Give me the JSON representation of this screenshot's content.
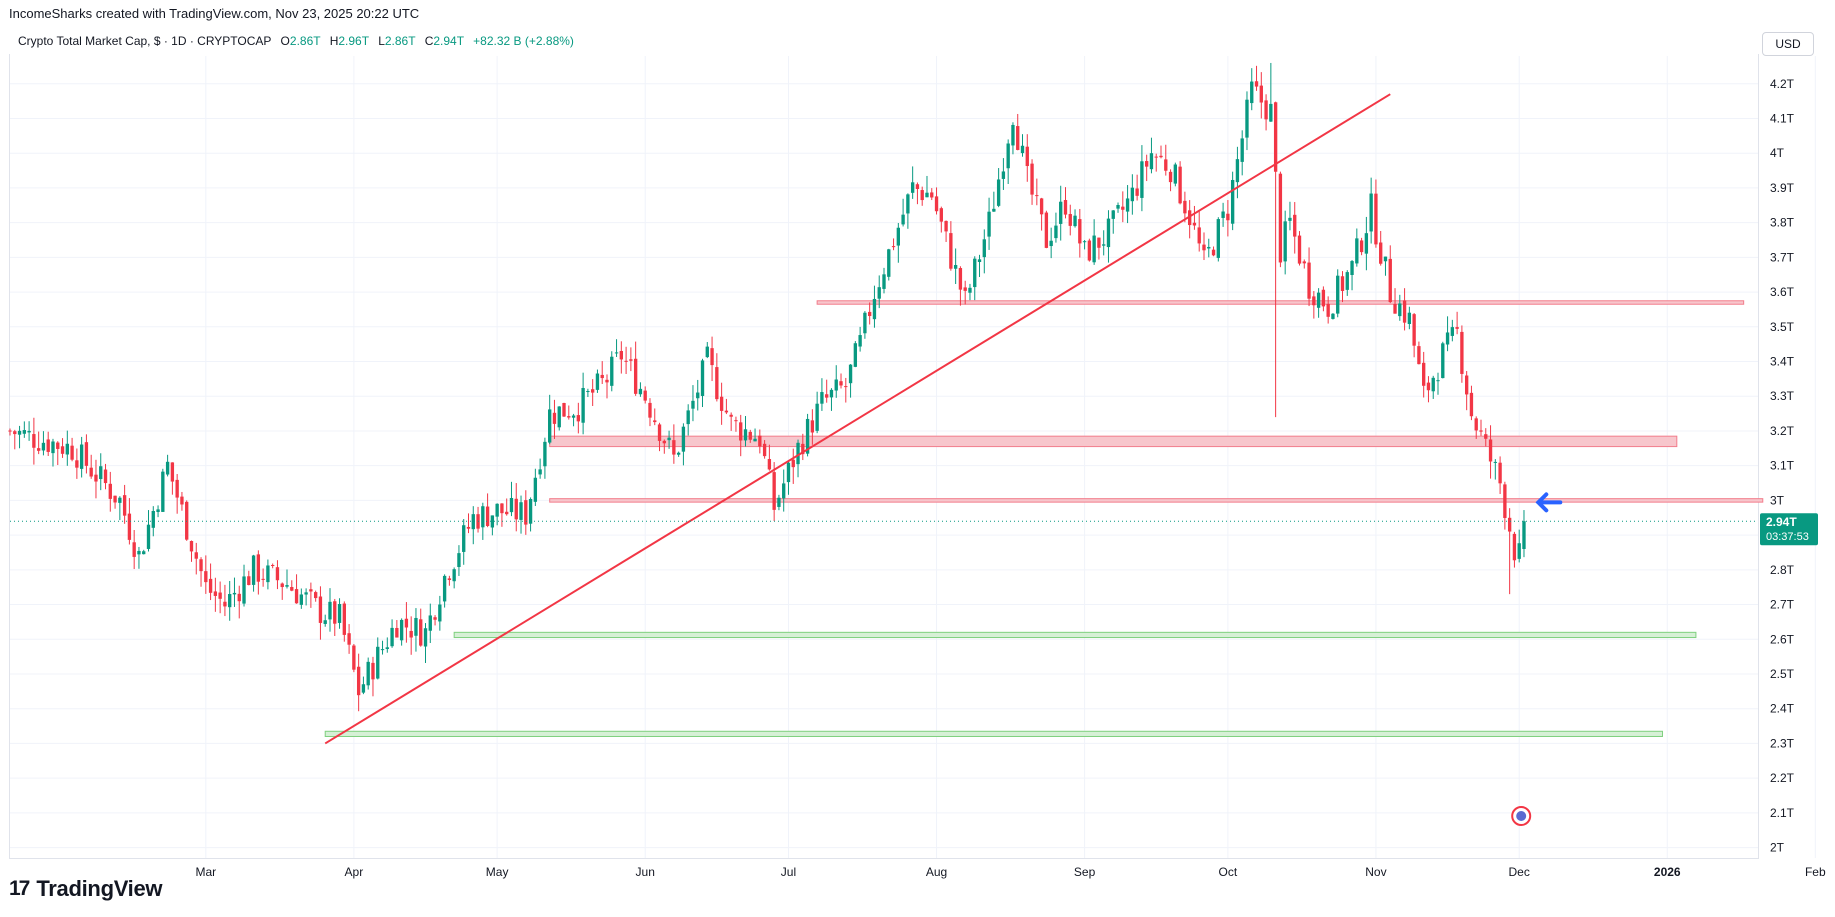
{
  "header": {
    "credit": "IncomeSharks created with TradingView.com, Nov 23, 2025 20:22 UTC",
    "symbol": "Crypto Total Market Cap, $ · 1D · CRYPTOCAP",
    "open_label": "O",
    "open": "2.86T",
    "high_label": "H",
    "high": "2.96T",
    "low_label": "L",
    "low": "2.86T",
    "close_label": "C",
    "close": "2.94T",
    "change": "+82.32 B (+2.88%)",
    "currency": "USD"
  },
  "brand": {
    "logo": "17",
    "name": "TradingView"
  },
  "price_tag": {
    "value": "2.94T",
    "countdown": "03:37:53"
  },
  "colors": {
    "up": "#089981",
    "down": "#f23645",
    "trendline": "#f23645",
    "resistance_fill": "#f7c6cc",
    "resistance_stroke": "#f27d8c",
    "support_fill": "#d6f0d6",
    "support_stroke": "#7fd07f",
    "arrow": "#2962ff",
    "grid": "#f0f3fa"
  },
  "chart_data": {
    "type": "candlestick",
    "title": "Crypto Total Market Cap, $ · 1D · CRYPTOCAP",
    "yaxis_unit": "T",
    "ylim": [
      1.97,
      4.28
    ],
    "y_ticks": [
      "2T",
      "2.1T",
      "2.2T",
      "2.3T",
      "2.4T",
      "2.5T",
      "2.6T",
      "2.7T",
      "2.8T",
      "2.9T",
      "3T",
      "3.1T",
      "3.2T",
      "3.3T",
      "3.4T",
      "3.5T",
      "3.6T",
      "3.7T",
      "3.8T",
      "3.9T",
      "4T",
      "4.1T",
      "4.2T"
    ],
    "y_tick_values": [
      2.0,
      2.1,
      2.2,
      2.3,
      2.4,
      2.5,
      2.6,
      2.7,
      2.8,
      2.9,
      3.0,
      3.1,
      3.2,
      3.3,
      3.4,
      3.5,
      3.6,
      3.7,
      3.8,
      3.9,
      4.0,
      4.1,
      4.2
    ],
    "x_range_days": [
      -13,
      353
    ],
    "x_ticks": [
      {
        "label": "Mar",
        "day": 28
      },
      {
        "label": "Apr",
        "day": 59
      },
      {
        "label": "May",
        "day": 89
      },
      {
        "label": "Jun",
        "day": 120
      },
      {
        "label": "Jul",
        "day": 150
      },
      {
        "label": "Aug",
        "day": 181
      },
      {
        "label": "Sep",
        "day": 212
      },
      {
        "label": "Oct",
        "day": 242
      },
      {
        "label": "Nov",
        "day": 273
      },
      {
        "label": "Dec",
        "day": 303
      },
      {
        "label": "2026",
        "day": 334,
        "bold": true
      },
      {
        "label": "Feb",
        "day": 365
      }
    ],
    "last_close": 2.94,
    "key_points": [
      {
        "day": -13,
        "close": 3.2
      },
      {
        "day": 0,
        "close": 3.15
      },
      {
        "day": 10,
        "close": 3.0
      },
      {
        "day": 14,
        "close": 2.84
      },
      {
        "day": 20,
        "close": 3.1
      },
      {
        "day": 28,
        "close": 2.75
      },
      {
        "day": 32,
        "close": 2.7
      },
      {
        "day": 38,
        "close": 2.8
      },
      {
        "day": 45,
        "close": 2.76
      },
      {
        "day": 52,
        "close": 2.68
      },
      {
        "day": 56,
        "close": 2.66
      },
      {
        "day": 60,
        "close": 2.45
      },
      {
        "day": 64,
        "close": 2.55
      },
      {
        "day": 68,
        "close": 2.65
      },
      {
        "day": 74,
        "close": 2.62
      },
      {
        "day": 78,
        "close": 2.78
      },
      {
        "day": 84,
        "close": 2.95
      },
      {
        "day": 89,
        "close": 2.97
      },
      {
        "day": 95,
        "close": 2.96
      },
      {
        "day": 100,
        "close": 3.25
      },
      {
        "day": 106,
        "close": 3.27
      },
      {
        "day": 112,
        "close": 3.35
      },
      {
        "day": 115,
        "close": 3.42
      },
      {
        "day": 120,
        "close": 3.3
      },
      {
        "day": 126,
        "close": 3.12
      },
      {
        "day": 133,
        "close": 3.4
      },
      {
        "day": 138,
        "close": 3.22
      },
      {
        "day": 144,
        "close": 3.18
      },
      {
        "day": 147,
        "close": 2.98
      },
      {
        "day": 152,
        "close": 3.15
      },
      {
        "day": 157,
        "close": 3.28
      },
      {
        "day": 162,
        "close": 3.33
      },
      {
        "day": 165,
        "close": 3.45
      },
      {
        "day": 168,
        "close": 3.6
      },
      {
        "day": 172,
        "close": 3.75
      },
      {
        "day": 176,
        "close": 3.9
      },
      {
        "day": 180,
        "close": 3.88
      },
      {
        "day": 184,
        "close": 3.7
      },
      {
        "day": 187,
        "close": 3.57
      },
      {
        "day": 192,
        "close": 3.8
      },
      {
        "day": 197,
        "close": 4.12
      },
      {
        "day": 200,
        "close": 3.92
      },
      {
        "day": 204,
        "close": 3.75
      },
      {
        "day": 208,
        "close": 3.86
      },
      {
        "day": 212,
        "close": 3.71
      },
      {
        "day": 217,
        "close": 3.77
      },
      {
        "day": 222,
        "close": 3.88
      },
      {
        "day": 226,
        "close": 4.0
      },
      {
        "day": 230,
        "close": 3.96
      },
      {
        "day": 234,
        "close": 3.82
      },
      {
        "day": 237,
        "close": 3.68
      },
      {
        "day": 242,
        "close": 3.84
      },
      {
        "day": 247,
        "close": 4.18
      },
      {
        "day": 251,
        "close": 4.12
      },
      {
        "day": 253,
        "close": 3.72
      },
      {
        "day": 255,
        "close": 3.8
      },
      {
        "day": 259,
        "close": 3.62
      },
      {
        "day": 263,
        "close": 3.56
      },
      {
        "day": 268,
        "close": 3.67
      },
      {
        "day": 272,
        "close": 3.84
      },
      {
        "day": 276,
        "close": 3.6
      },
      {
        "day": 280,
        "close": 3.52
      },
      {
        "day": 283,
        "close": 3.3
      },
      {
        "day": 287,
        "close": 3.42
      },
      {
        "day": 290,
        "close": 3.48
      },
      {
        "day": 293,
        "close": 3.25
      },
      {
        "day": 296,
        "close": 3.15
      },
      {
        "day": 299,
        "close": 3.05
      },
      {
        "day": 302,
        "close": 2.86
      },
      {
        "day": 303,
        "close": 2.84
      },
      {
        "day": 304,
        "close": 2.94
      }
    ],
    "extreme_wicks": [
      {
        "day": 252,
        "low": 3.24
      },
      {
        "day": 301,
        "low": 2.73
      },
      {
        "day": 251,
        "high": 4.26
      }
    ],
    "horizontal_zones": [
      {
        "kind": "resistance",
        "from_day": 156,
        "to_day": 350,
        "low": 3.565,
        "high": 3.575
      },
      {
        "kind": "resistance",
        "from_day": 100,
        "to_day": 336,
        "low": 3.155,
        "high": 3.185
      },
      {
        "kind": "resistance",
        "from_day": 100,
        "to_day": 354,
        "low": 2.995,
        "high": 3.005
      },
      {
        "kind": "support",
        "from_day": 80,
        "to_day": 340,
        "low": 2.605,
        "high": 2.62
      },
      {
        "kind": "support",
        "from_day": 53,
        "to_day": 333,
        "low": 2.32,
        "high": 2.335
      }
    ],
    "trendline": {
      "from": {
        "day": 53,
        "value": 2.3
      },
      "to": {
        "day": 276,
        "value": 4.17
      }
    },
    "current_marker_day": 307
  }
}
